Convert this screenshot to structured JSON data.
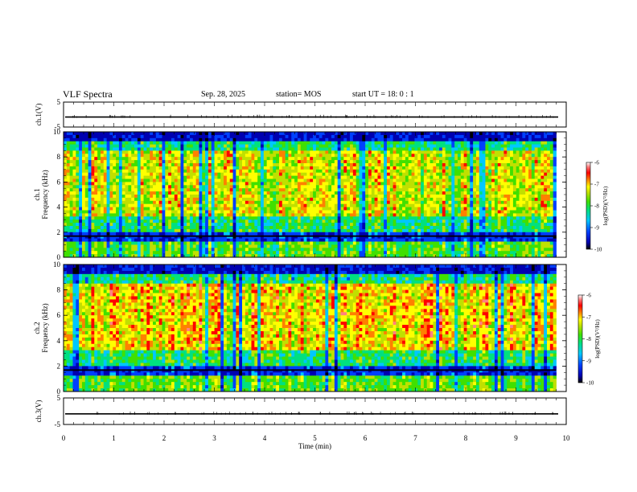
{
  "header": {
    "title": "VLF Spectra",
    "date": "Sep. 28, 2025",
    "station": "station= MOS",
    "start_ut": "start UT =  18: 0  : 1"
  },
  "colors": {
    "spectrogram_scale": [
      "#000000",
      "#0000b0",
      "#0040ff",
      "#00c8ff",
      "#00e080",
      "#40e000",
      "#c0e000",
      "#ffff00",
      "#ff8000",
      "#ff0000",
      "#ff8080",
      "#ffffff"
    ]
  },
  "chart_data": [
    {
      "type": "line",
      "name": "ch1-waveform",
      "ylabel": "ch.1(V)",
      "ylim": [
        -5,
        5
      ],
      "yticks": [
        "5",
        "-5"
      ],
      "level": -1,
      "xlim": [
        0,
        10
      ]
    },
    {
      "type": "heatmap",
      "name": "ch1-spectrogram",
      "ylabel_channel": "ch.1",
      "ylabel": "Frequency (kHz)",
      "ylim": [
        0,
        10
      ],
      "yticks": [
        "0",
        "2",
        "4",
        "6",
        "8",
        "10"
      ],
      "xlim": [
        0,
        9.8
      ],
      "colorbar": {
        "label": "log(PSD)(V²/Hz)",
        "range": [
          -10,
          -6
        ],
        "ticks": [
          "-6",
          "-7",
          "-8",
          "-9",
          "-10"
        ]
      }
    },
    {
      "type": "heatmap",
      "name": "ch2-spectrogram",
      "ylabel_channel": "ch.2",
      "ylabel": "Frequency (kHz)",
      "ylim": [
        0,
        10
      ],
      "yticks": [
        "0",
        "2",
        "4",
        "6",
        "8",
        "10"
      ],
      "xlim": [
        0,
        9.8
      ],
      "colorbar": {
        "label": "log(PSD)(V²/Hz)",
        "range": [
          -10,
          -6
        ],
        "ticks": [
          "-6",
          "-7",
          "-8",
          "-9",
          "-10"
        ]
      }
    },
    {
      "type": "line",
      "name": "ch3-waveform",
      "ylabel": "ch.3(V)",
      "ylim": [
        -5,
        5
      ],
      "yticks": [
        "5",
        "-5"
      ],
      "level": -1,
      "xlim": [
        0,
        10
      ]
    }
  ],
  "xaxis": {
    "label": "Time (min)",
    "range": [
      0,
      10
    ],
    "ticks": [
      "0",
      "1",
      "2",
      "3",
      "4",
      "5",
      "6",
      "7",
      "8",
      "9",
      "10"
    ]
  }
}
